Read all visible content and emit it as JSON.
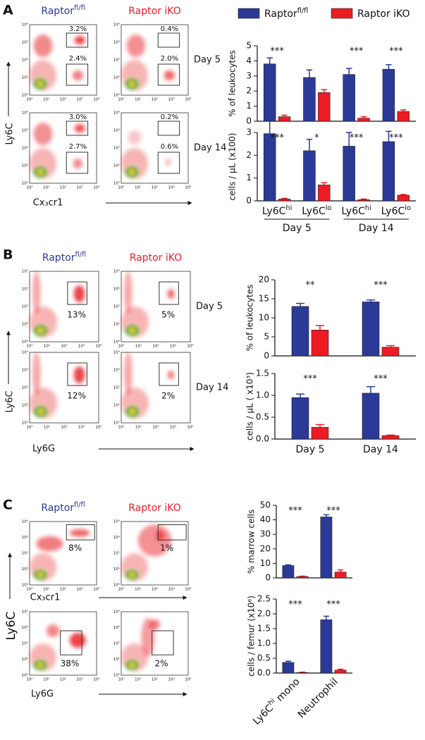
{
  "flow_ticks": [
    "10⁰",
    "10¹",
    "10²",
    "10³",
    "10⁴"
  ],
  "panels": [
    {
      "label": "A",
      "column_headers": [
        {
          "text": "Raptor",
          "sup": "fl/fl",
          "color": "#2b3a97"
        },
        {
          "text": "Raptor iKO",
          "color": "#ed1c24"
        }
      ],
      "y_label": "Ly6C",
      "x_label": "Cx₃cr1",
      "rows": [
        {
          "label": "Day 5",
          "gates": [
            [
              "3.2%",
              "2.4%"
            ],
            [
              "0.4%",
              "2.0%"
            ]
          ]
        },
        {
          "label": "Day 14",
          "gates": [
            [
              "3.0%",
              "2.7%"
            ],
            [
              "0.2%",
              "0.6%"
            ]
          ]
        }
      ]
    },
    {
      "label": "B",
      "column_headers": [
        {
          "text": "Raptor",
          "sup": "fl/fl",
          "color": "#2b3a97"
        },
        {
          "text": "Raptor iKO",
          "color": "#ed1c24"
        }
      ],
      "y_label": "Ly6C",
      "x_label": "Ly6G",
      "rows": [
        {
          "label": "Day 5",
          "gates": [
            [
              "13%"
            ],
            [
              "5%"
            ]
          ]
        },
        {
          "label": "Day 14",
          "gates": [
            [
              "12%"
            ],
            [
              "2%"
            ]
          ]
        }
      ]
    },
    {
      "label": "C",
      "column_headers": [
        {
          "text": "Raptor",
          "sup": "fl/fl",
          "color": "#2b3a97"
        },
        {
          "text": "Raptor iKO",
          "color": "#ed1c24"
        }
      ],
      "y_label": "Ly6C",
      "rows": [
        {
          "x_label": "Cx₃cr1",
          "gates": [
            [
              "8%"
            ],
            [
              "1%"
            ]
          ]
        },
        {
          "x_label": "Ly6G",
          "gates": [
            [
              "38%"
            ],
            [
              "2%"
            ]
          ]
        }
      ]
    }
  ],
  "chart_data": [
    {
      "type": "bar",
      "y_label": "% of leukocytes",
      "ylim": [
        0,
        5
      ],
      "yticks": [
        0,
        1,
        2,
        3,
        4,
        5
      ],
      "annotations": [
        "***",
        null,
        "***",
        "***"
      ],
      "series": [
        {
          "name": "Raptor",
          "name_sup": "fl/fl",
          "color": "#2b3a97",
          "values": [
            3.8,
            2.9,
            3.1,
            3.45
          ],
          "errors": [
            0.4,
            0.5,
            0.4,
            0.3
          ]
        },
        {
          "name": "Raptor iKO",
          "color": "#ed1c24",
          "values": [
            0.3,
            1.9,
            0.2,
            0.65
          ],
          "errors": [
            0.1,
            0.2,
            0.1,
            0.1
          ]
        }
      ]
    },
    {
      "type": "bar",
      "y_label": "cells / µL (x100)",
      "ylim": [
        0,
        3
      ],
      "yticks": [
        0,
        1,
        2,
        3
      ],
      "categories": [
        "Ly6C",
        "Ly6C",
        "Ly6C",
        "Ly6C"
      ],
      "category_sup": [
        "hi",
        "lo",
        "hi",
        "lo"
      ],
      "group_labels": [
        "Day 5",
        "Day 14"
      ],
      "annotations": [
        "***",
        "*",
        "***",
        "***"
      ],
      "series": [
        {
          "color": "#2b3a97",
          "values": [
            2.95,
            2.2,
            2.4,
            2.6
          ],
          "errors": [
            0.6,
            0.5,
            0.6,
            0.45
          ]
        },
        {
          "color": "#ed1c24",
          "values": [
            0.08,
            0.7,
            0.05,
            0.25
          ],
          "errors": [
            0.03,
            0.1,
            0.03,
            0.03
          ]
        }
      ]
    },
    {
      "type": "bar",
      "y_label": "% of leukocytes",
      "ylim": [
        0,
        20
      ],
      "yticks": [
        0,
        5,
        10,
        15,
        20
      ],
      "annotations": [
        "**",
        "***"
      ],
      "series": [
        {
          "color": "#2b3a97",
          "values": [
            13,
            14.2
          ],
          "errors": [
            0.8,
            0.5
          ]
        },
        {
          "color": "#ed1c24",
          "values": [
            6.8,
            2.3
          ],
          "errors": [
            1.2,
            0.4
          ]
        }
      ]
    },
    {
      "type": "bar",
      "y_label": "cells / µL ( x10³)",
      "ylim": [
        0,
        1.5
      ],
      "yticks": [
        {
          "value": 0,
          "label": "0.0"
        },
        0.5,
        {
          "value": 1,
          "label": "1.0"
        },
        1.5
      ],
      "categories": [
        "Day 5",
        "Day 14"
      ],
      "annotations": [
        "***",
        "***"
      ],
      "series": [
        {
          "color": "#2b3a97",
          "values": [
            0.95,
            1.05
          ],
          "errors": [
            0.08,
            0.15
          ]
        },
        {
          "color": "#ed1c24",
          "values": [
            0.27,
            0.08
          ],
          "errors": [
            0.06,
            0.01
          ]
        }
      ]
    },
    {
      "type": "bar",
      "y_label": "% marrow cells",
      "ylim": [
        0,
        50
      ],
      "yticks": [
        0,
        10,
        20,
        30,
        40,
        50
      ],
      "annotations": [
        "***",
        "***"
      ],
      "series": [
        {
          "color": "#2b3a97",
          "values": [
            8.5,
            42
          ],
          "errors": [
            0.5,
            1.5
          ]
        },
        {
          "color": "#ed1c24",
          "values": [
            1,
            4
          ],
          "errors": [
            0.2,
            1.5
          ]
        }
      ]
    },
    {
      "type": "bar",
      "y_label": "cells / femur (x10⁶)",
      "ylim": [
        0,
        2.5
      ],
      "yticks": [
        {
          "value": 0,
          "label": "0.0"
        },
        0.5,
        {
          "value": 1,
          "label": "1.0"
        },
        1.5,
        {
          "value": 2,
          "label": "2.0"
        },
        2.5
      ],
      "categories": [
        "Ly6C",
        "Neutrophil"
      ],
      "category_sup": [
        "hi",
        null
      ],
      "category_suffix": [
        " mono",
        null
      ],
      "annotations": [
        "***",
        "***"
      ],
      "series": [
        {
          "color": "#2b3a97",
          "values": [
            0.36,
            1.8
          ],
          "errors": [
            0.04,
            0.12
          ]
        },
        {
          "color": "#ed1c24",
          "values": [
            0.02,
            0.1
          ],
          "errors": [
            0.01,
            0.03
          ]
        }
      ]
    }
  ]
}
